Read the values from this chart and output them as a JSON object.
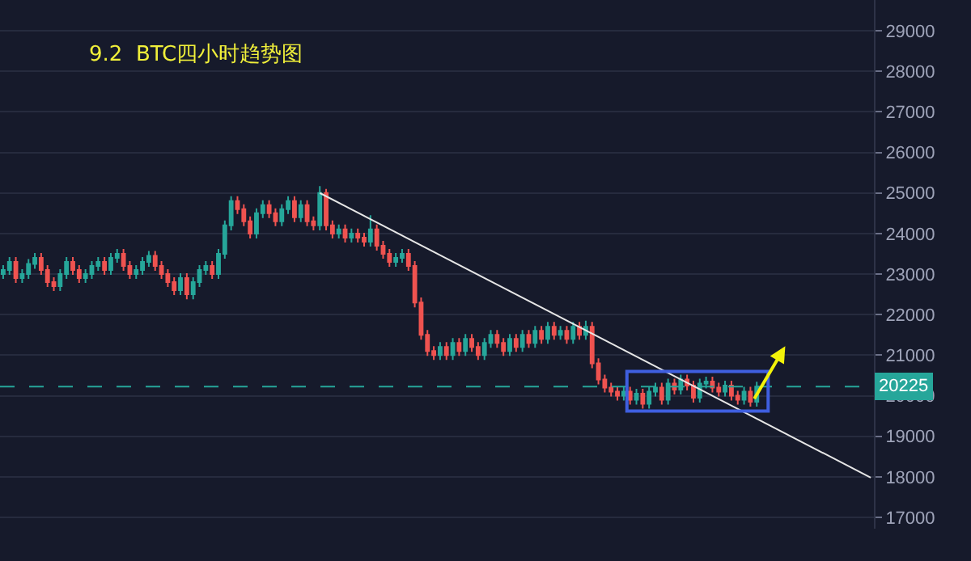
{
  "chart_data": {
    "type": "candlestick",
    "title": "9.2  BTC四小时趋势图",
    "categories": [
      null,
      null,
      null,
      null,
      null,
      null,
      null,
      null,
      null,
      null,
      null,
      null,
      null,
      null,
      null,
      null,
      null,
      null,
      null,
      null,
      null,
      null,
      null,
      null,
      null,
      null,
      null,
      null,
      null,
      null,
      null,
      null,
      null,
      null,
      null,
      null,
      null,
      null,
      null,
      null,
      null,
      null,
      null,
      null,
      null,
      null,
      null,
      null,
      null,
      null,
      null,
      null,
      null,
      null,
      null,
      null,
      null,
      null,
      null,
      null,
      null,
      null,
      null,
      null,
      null,
      null,
      null,
      null,
      null,
      null,
      null,
      null,
      null,
      null,
      null,
      null,
      null,
      null,
      null,
      null,
      null,
      null,
      null,
      null,
      null,
      null,
      null,
      null,
      null,
      null,
      null,
      null,
      null,
      null,
      null,
      null,
      null,
      null,
      null,
      null,
      null,
      null,
      null,
      null,
      null,
      null,
      null,
      null,
      null,
      null,
      null,
      null,
      null,
      null,
      null,
      null,
      null,
      null,
      null,
      null,
      null,
      null,
      null,
      null,
      null,
      null,
      null,
      null,
      null,
      null,
      null,
      null,
      null,
      null,
      null,
      null,
      null,
      null
    ],
    "colors": [
      "#26a69a",
      "#26a69a",
      "#ef5350",
      "#26a69a",
      "#26a69a",
      "#26a69a",
      "#ef5350",
      "#ef5350",
      "#ef5350",
      "#26a69a",
      "#26a69a",
      "#ef5350",
      "#ef5350",
      "#26a69a",
      "#26a69a",
      "#26a69a",
      "#ef5350",
      "#26a69a",
      "#26a69a",
      "#ef5350",
      "#ef5350",
      "#26a69a",
      "#26a69a",
      "#26a69a",
      "#ef5350",
      "#ef5350",
      "#ef5350",
      "#ef5350",
      "#26a69a",
      "#ef5350",
      "#26a69a",
      "#26a69a",
      "#26a69a",
      "#ef5350",
      "#26a69a",
      "#26a69a",
      "#26a69a",
      "#ef5350",
      "#ef5350",
      "#ef5350",
      "#26a69a",
      "#26a69a",
      "#ef5350",
      "#ef5350",
      "#26a69a",
      "#26a69a",
      "#ef5350",
      "#26a69a",
      "#ef5350",
      "#ef5350",
      "#26a69a",
      "#ef5350",
      "#ef5350",
      "#26a69a",
      "#ef5350",
      "#26a69a",
      "#ef5350",
      "#ef5350",
      "#26a69a",
      "#ef5350",
      "#ef5350",
      "#ef5350",
      "#26a69a",
      "#26a69a",
      "#ef5350",
      "#ef5350",
      "#ef5350",
      "#ef5350",
      "#ef5350",
      "#26a69a",
      "#ef5350",
      "#26a69a",
      "#ef5350",
      "#26a69a",
      "#ef5350",
      "#ef5350",
      "#26a69a",
      "#26a69a",
      "#ef5350",
      "#ef5350",
      "#26a69a",
      "#ef5350",
      "#26a69a",
      "#ef5350",
      "#26a69a",
      "#ef5350",
      "#26a69a",
      "#ef5350",
      "#26a69a",
      "#ef5350",
      "#26a69a",
      "#ef5350",
      "#26a69a",
      "#ef5350",
      "#ef5350",
      "#ef5350",
      "#ef5350",
      "#ef5350",
      "#26a69a",
      "#ef5350",
      "#26a69a",
      "#ef5350",
      "#26a69a",
      "#26a69a",
      "#ef5350",
      "#26a69a",
      "#ef5350",
      "#26a69a",
      "#ef5350",
      "#ef5350",
      "#26a69a",
      "#26a69a",
      "#ef5350",
      "#ef5350",
      "#26a69a",
      "#ef5350",
      "#ef5350",
      "#26a69a",
      "#ef5350",
      "#26a69a",
      null,
      null,
      null,
      null,
      null,
      null,
      null,
      null,
      null,
      null,
      null,
      null,
      null,
      null,
      null,
      null,
      null,
      null
    ],
    "ohlc": [
      [
        23000,
        23220,
        22880,
        23100
      ],
      [
        23100,
        23420,
        22980,
        23300
      ],
      [
        23300,
        23420,
        22780,
        22900
      ],
      [
        22900,
        23120,
        22780,
        23000
      ],
      [
        23000,
        23370,
        22880,
        23250
      ],
      [
        23250,
        23520,
        23130,
        23400
      ],
      [
        23400,
        23520,
        22980,
        23100
      ],
      [
        23100,
        23220,
        22680,
        22800
      ],
      [
        22800,
        22920,
        22580,
        22700
      ],
      [
        22700,
        23120,
        22580,
        23000
      ],
      [
        23000,
        23420,
        22880,
        23300
      ],
      [
        23300,
        23420,
        22980,
        23100
      ],
      [
        23100,
        23220,
        22780,
        22900
      ],
      [
        22900,
        23120,
        22780,
        23000
      ],
      [
        23000,
        23320,
        22880,
        23200
      ],
      [
        23200,
        23420,
        23080,
        23300
      ],
      [
        23300,
        23420,
        22980,
        23100
      ],
      [
        23100,
        23520,
        22980,
        23400
      ],
      [
        23400,
        23620,
        23280,
        23500
      ],
      [
        23500,
        23620,
        23080,
        23200
      ],
      [
        23200,
        23320,
        22880,
        23000
      ],
      [
        23000,
        23220,
        22880,
        23100
      ],
      [
        23100,
        23420,
        22980,
        23300
      ],
      [
        23300,
        23570,
        23180,
        23450
      ],
      [
        23450,
        23570,
        23080,
        23200
      ],
      [
        23200,
        23320,
        22880,
        23000
      ],
      [
        23000,
        23120,
        22680,
        22800
      ],
      [
        22800,
        22920,
        22480,
        22600
      ],
      [
        22600,
        23020,
        22480,
        22900
      ],
      [
        22900,
        23020,
        22380,
        22500
      ],
      [
        22500,
        22920,
        22380,
        22800
      ],
      [
        22800,
        23220,
        22680,
        23100
      ],
      [
        23100,
        23320,
        22980,
        23200
      ],
      [
        23200,
        23320,
        22880,
        23000
      ],
      [
        23000,
        23620,
        22880,
        23500
      ],
      [
        23500,
        24320,
        23380,
        24200
      ],
      [
        24200,
        24920,
        24080,
        24800
      ],
      [
        24800,
        24920,
        24480,
        24600
      ],
      [
        24600,
        24720,
        24180,
        24300
      ],
      [
        24300,
        24420,
        23880,
        24000
      ],
      [
        24000,
        24620,
        23880,
        24500
      ],
      [
        24500,
        24820,
        24380,
        24700
      ],
      [
        24700,
        24820,
        24380,
        24500
      ],
      [
        24500,
        24620,
        24180,
        24300
      ],
      [
        24300,
        24720,
        24180,
        24600
      ],
      [
        24600,
        24920,
        24480,
        24800
      ],
      [
        24800,
        24920,
        24280,
        24400
      ],
      [
        24400,
        24820,
        24280,
        24700
      ],
      [
        24700,
        24820,
        24180,
        24300
      ],
      [
        24300,
        24420,
        24080,
        24200
      ],
      [
        24200,
        25170,
        24080,
        25000
      ],
      [
        25000,
        25100,
        24080,
        24200
      ],
      [
        24200,
        24320,
        23880,
        24000
      ],
      [
        24000,
        24220,
        23880,
        24100
      ],
      [
        24100,
        24220,
        23780,
        23900
      ],
      [
        23900,
        24120,
        23780,
        24000
      ],
      [
        24000,
        24120,
        23780,
        23900
      ],
      [
        23900,
        24020,
        23680,
        23800
      ],
      [
        23800,
        24450,
        23680,
        24100
      ],
      [
        24100,
        24220,
        23580,
        23700
      ],
      [
        23700,
        23820,
        23380,
        23500
      ],
      [
        23500,
        23620,
        23180,
        23300
      ],
      [
        23300,
        23520,
        23180,
        23400
      ],
      [
        23400,
        23620,
        23280,
        23500
      ],
      [
        23500,
        23620,
        23080,
        23200
      ],
      [
        23200,
        23320,
        22180,
        22300
      ],
      [
        22300,
        22420,
        21380,
        21500
      ],
      [
        21500,
        21620,
        20980,
        21100
      ],
      [
        21100,
        21220,
        20880,
        21000
      ],
      [
        21000,
        21320,
        20880,
        21200
      ],
      [
        21200,
        21320,
        20880,
        21000
      ],
      [
        21000,
        21420,
        20880,
        21300
      ],
      [
        21300,
        21420,
        20980,
        21100
      ],
      [
        21100,
        21520,
        20980,
        21400
      ],
      [
        21400,
        21520,
        21080,
        21200
      ],
      [
        21200,
        21320,
        20880,
        21000
      ],
      [
        21000,
        21420,
        20880,
        21300
      ],
      [
        21300,
        21620,
        21180,
        21500
      ],
      [
        21500,
        21620,
        21180,
        21300
      ],
      [
        21300,
        21420,
        20980,
        21100
      ],
      [
        21100,
        21520,
        20980,
        21400
      ],
      [
        21400,
        21520,
        21080,
        21200
      ],
      [
        21200,
        21620,
        21080,
        21500
      ],
      [
        21500,
        21620,
        21180,
        21300
      ],
      [
        21300,
        21720,
        21180,
        21600
      ],
      [
        21600,
        21720,
        21280,
        21400
      ],
      [
        21400,
        21820,
        21280,
        21700
      ],
      [
        21700,
        21820,
        21380,
        21500
      ],
      [
        21500,
        21720,
        21380,
        21600
      ],
      [
        21600,
        21720,
        21280,
        21400
      ],
      [
        21400,
        21820,
        21280,
        21700
      ],
      [
        21700,
        21820,
        21380,
        21500
      ],
      [
        21500,
        21850,
        21380,
        21700
      ],
      [
        21700,
        21820,
        20680,
        20800
      ],
      [
        20800,
        20920,
        20280,
        20400
      ],
      [
        20400,
        20520,
        20080,
        20200
      ],
      [
        20200,
        20320,
        19980,
        20100
      ],
      [
        20100,
        20220,
        19880,
        20000
      ],
      [
        20000,
        20220,
        19880,
        20100
      ],
      [
        20100,
        20220,
        19780,
        19900
      ],
      [
        19900,
        20170,
        19780,
        20050
      ],
      [
        20050,
        20170,
        19680,
        19800
      ],
      [
        19800,
        20220,
        19680,
        20100
      ],
      [
        20100,
        20320,
        19980,
        20200
      ],
      [
        20200,
        20320,
        19780,
        19900
      ],
      [
        19900,
        20420,
        19780,
        20300
      ],
      [
        20300,
        20420,
        20030,
        20150
      ],
      [
        20150,
        20520,
        20030,
        20400
      ],
      [
        20400,
        20520,
        20130,
        20250
      ],
      [
        20250,
        20370,
        19830,
        19950
      ],
      [
        19950,
        20420,
        19830,
        20300
      ],
      [
        20300,
        20470,
        20180,
        20350
      ],
      [
        20350,
        20470,
        20080,
        20200
      ],
      [
        20200,
        20320,
        19980,
        20100
      ],
      [
        20100,
        20370,
        19980,
        20250
      ],
      [
        20250,
        20370,
        19880,
        20000
      ],
      [
        20000,
        20120,
        19780,
        19900
      ],
      [
        19900,
        20220,
        19780,
        20100
      ],
      [
        20100,
        20220,
        19730,
        19850
      ],
      [
        19850,
        20345,
        19730,
        20225
      ],
      null,
      null,
      null,
      null,
      null,
      null,
      null,
      null,
      null,
      null,
      null,
      null,
      null,
      null,
      null,
      null,
      null,
      null
    ],
    "series": [
      {
        "type": "line",
        "color": "#e6e6e6",
        "values": [
          null,
          null,
          null,
          null,
          null,
          null,
          null,
          null,
          null,
          null,
          null,
          null,
          null,
          null,
          null,
          null,
          null,
          null,
          null,
          null,
          null,
          null,
          null,
          null,
          null,
          null,
          null,
          null,
          null,
          null,
          null,
          null,
          null,
          null,
          null,
          null,
          null,
          null,
          null,
          null,
          null,
          null,
          null,
          null,
          null,
          null,
          null,
          null,
          null,
          null,
          25000,
          null,
          null,
          null,
          null,
          null,
          null,
          null,
          null,
          null,
          null,
          null,
          null,
          null,
          null,
          null,
          null,
          null,
          null,
          null,
          null,
          null,
          null,
          null,
          null,
          null,
          null,
          null,
          null,
          null,
          null,
          null,
          null,
          null,
          null,
          null,
          null,
          null,
          null,
          null,
          null,
          null,
          null,
          null,
          null,
          null,
          null,
          null,
          null,
          null,
          null,
          null,
          null,
          null,
          null,
          null,
          null,
          null,
          null,
          null,
          null,
          null,
          null,
          null,
          null,
          null,
          null,
          null,
          null,
          null,
          null,
          null,
          null,
          null,
          null,
          null,
          null,
          null,
          null,
          null,
          null,
          null,
          null,
          null,
          null,
          null,
          null,
          17980
        ]
      }
    ],
    "ref_lines": [
      {
        "axis": "y",
        "value": 20225,
        "label": "20225",
        "color": "#26a69a",
        "line_style": "dashed"
      }
    ],
    "ylim": [
      16720,
      29760
    ],
    "yticks": [
      17000,
      18000,
      19000,
      20000,
      21000,
      22000,
      23000,
      24000,
      25000,
      26000,
      27000,
      28000,
      29000
    ],
    "grid": true
  }
}
